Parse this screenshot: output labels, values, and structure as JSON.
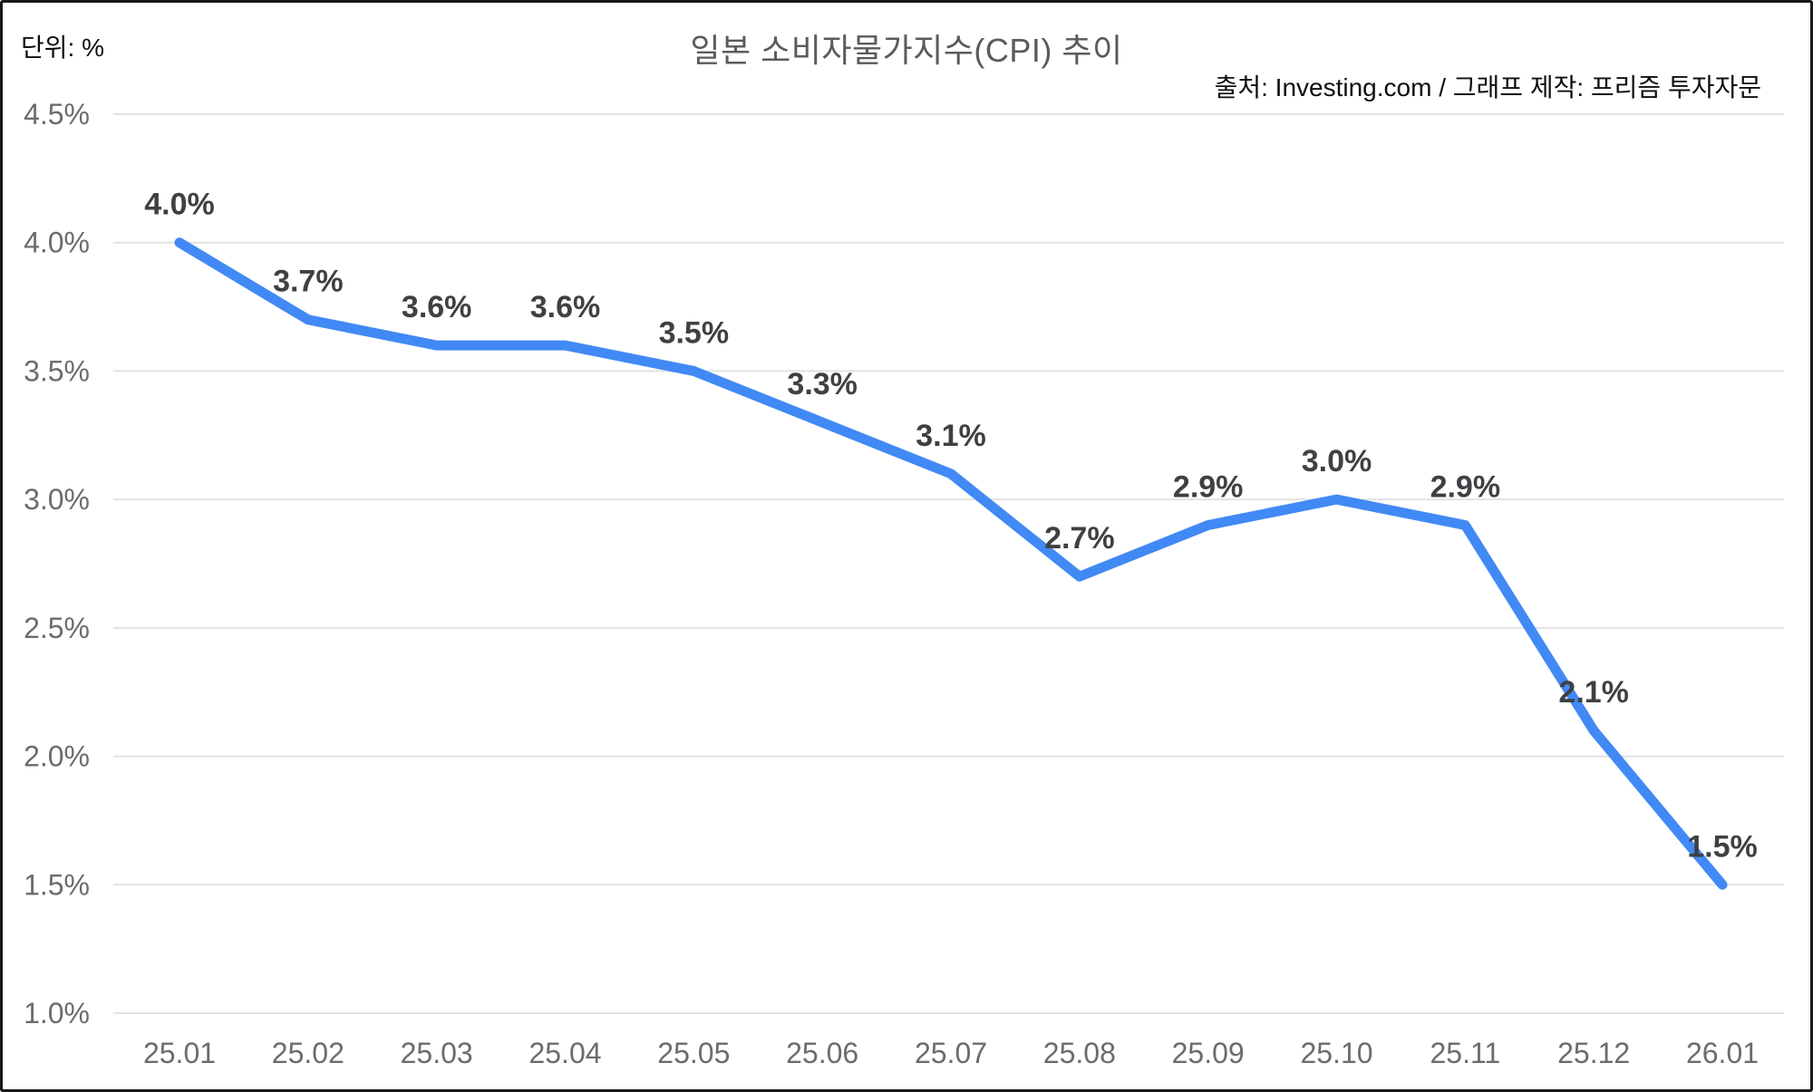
{
  "header": {
    "unit_label": "단위: %",
    "title": "일본 소비자물가지수(CPI) 추이",
    "source": "출처: Investing.com / 그래프 제작: 프리즘 투자자문"
  },
  "chart_data": {
    "type": "line",
    "title": "일본 소비자물가지수(CPI) 추이",
    "unit": "%",
    "categories": [
      "25.01",
      "25.02",
      "25.03",
      "25.04",
      "25.05",
      "25.06",
      "25.07",
      "25.08",
      "25.09",
      "25.10",
      "25.11",
      "25.12",
      "26.01"
    ],
    "values": [
      4.0,
      3.7,
      3.6,
      3.6,
      3.5,
      3.3,
      3.1,
      2.7,
      2.9,
      3.0,
      2.9,
      2.1,
      1.5
    ],
    "point_labels": [
      "4.0%",
      "3.7%",
      "3.6%",
      "3.6%",
      "3.5%",
      "3.3%",
      "3.1%",
      "2.7%",
      "2.9%",
      "3.0%",
      "2.9%",
      "2.1%",
      "1.5%"
    ],
    "yticks": [
      "4.5%",
      "4.0%",
      "3.5%",
      "3.0%",
      "2.5%",
      "2.0%",
      "1.5%",
      "1.0%"
    ],
    "ytick_values": [
      4.5,
      4.0,
      3.5,
      3.0,
      2.5,
      2.0,
      1.5,
      1.0
    ],
    "ylim": [
      1.0,
      4.5
    ],
    "xlabel": "",
    "ylabel": "",
    "grid": true,
    "legend": "none",
    "colors": {
      "line": "#4189F4",
      "gridline": "#E2E2E2",
      "axis_text": "#6A6C6E",
      "data_label": "#3E4043",
      "title_text": "#595B5E",
      "black_text": "#0E0E0E",
      "background": "#FFFFFF",
      "frame": "#191919"
    }
  }
}
